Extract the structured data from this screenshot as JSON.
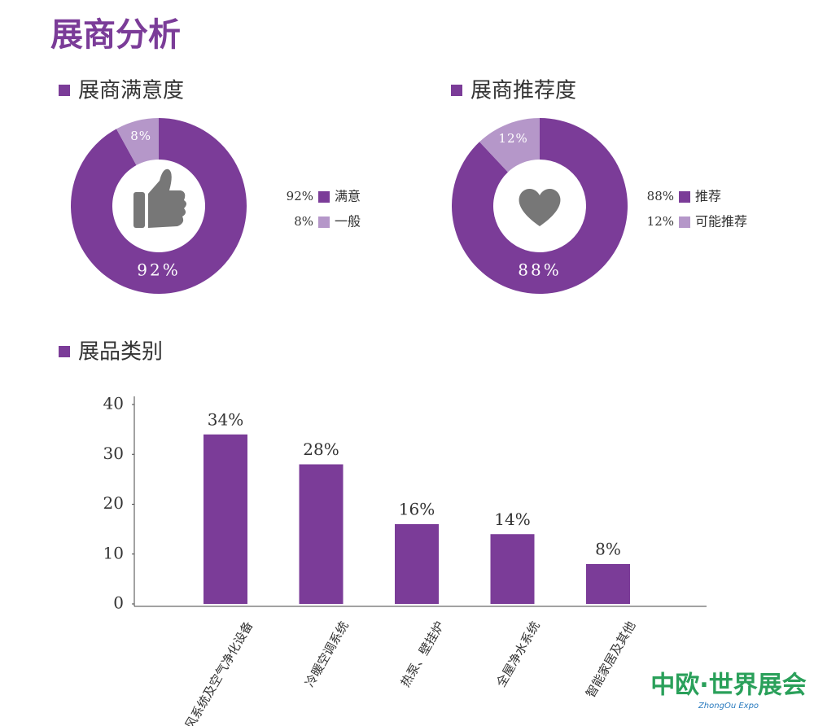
{
  "title": "展商分析",
  "chart_data": [
    {
      "type": "donut",
      "title": "展商满意度",
      "categories": [
        "满意",
        "一般"
      ],
      "values": [
        92,
        8
      ],
      "value_labels": [
        "92%",
        "8%"
      ],
      "colors": [
        "#7b3c98",
        "#b597c9"
      ]
    },
    {
      "type": "donut",
      "title": "展商推荐度",
      "categories": [
        "推荐",
        "可能推荐"
      ],
      "values": [
        88,
        12
      ],
      "value_labels": [
        "88%",
        "12%"
      ],
      "colors": [
        "#7b3c98",
        "#b597c9"
      ]
    },
    {
      "type": "bar",
      "title": "展品类别",
      "categories": [
        "新风系统及空气净化设备",
        "冷暖空调系统",
        "热泵、壁挂炉",
        "全屋净水系统",
        "智能家居及其他"
      ],
      "values": [
        34,
        28,
        16,
        14,
        8
      ],
      "value_labels": [
        "34%",
        "28%",
        "16%",
        "14%",
        "8%"
      ],
      "color": "#7b3c98",
      "ylim": [
        0,
        40
      ],
      "yticks": [
        0,
        10,
        20,
        30,
        40
      ]
    }
  ],
  "logo": {
    "text": "中欧·世界展会",
    "subtext": "ZhongOu Expo"
  }
}
